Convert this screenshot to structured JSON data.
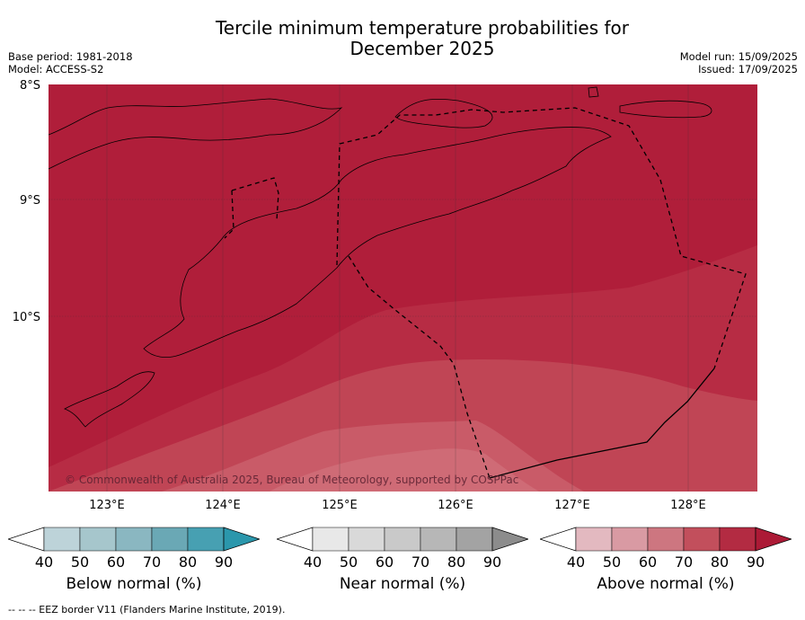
{
  "title_line1": "Tercile minimum temperature probabilities for",
  "title_line2": "December 2025",
  "base_period": "Base period: 1981-2018",
  "model": "Model: ACCESS-S2",
  "model_run": "Model run: 15/09/2025",
  "issued": "Issued: 17/09/2025",
  "lat_labels": [
    "8°S",
    "9°S",
    "10°S"
  ],
  "lon_labels": [
    "123°E",
    "124°E",
    "125°E",
    "126°E",
    "127°E",
    "128°E"
  ],
  "copyright": "© Commonwealth of Australia 2025, Bureau of Meteorology, supported by COSPPac",
  "colorbars": [
    {
      "title": "Below normal (%)",
      "ticks": [
        "40",
        "50",
        "60",
        "70",
        "80",
        "90"
      ],
      "colors": [
        "#ffffff",
        "#bdd3d9",
        "#a6c6cc",
        "#8ab7c1",
        "#6aa8b5",
        "#47a0b2",
        "#2b97ac"
      ]
    },
    {
      "title": "Near normal (%)",
      "ticks": [
        "40",
        "50",
        "60",
        "70",
        "80",
        "90"
      ],
      "colors": [
        "#ffffff",
        "#e8e8e8",
        "#d9d9d9",
        "#c9c9c9",
        "#b7b7b7",
        "#a3a3a3",
        "#8c8c8c"
      ]
    },
    {
      "title": "Above normal (%)",
      "ticks": [
        "40",
        "50",
        "60",
        "70",
        "80",
        "90"
      ],
      "colors": [
        "#ffffff",
        "#e3b9c0",
        "#d99aa3",
        "#cd7680",
        "#c24f5c",
        "#b32b42",
        "#ac1a36"
      ]
    }
  ],
  "footer": "--  --  -- EEZ border V11 (Flanders Marine Institute, 2019)."
}
